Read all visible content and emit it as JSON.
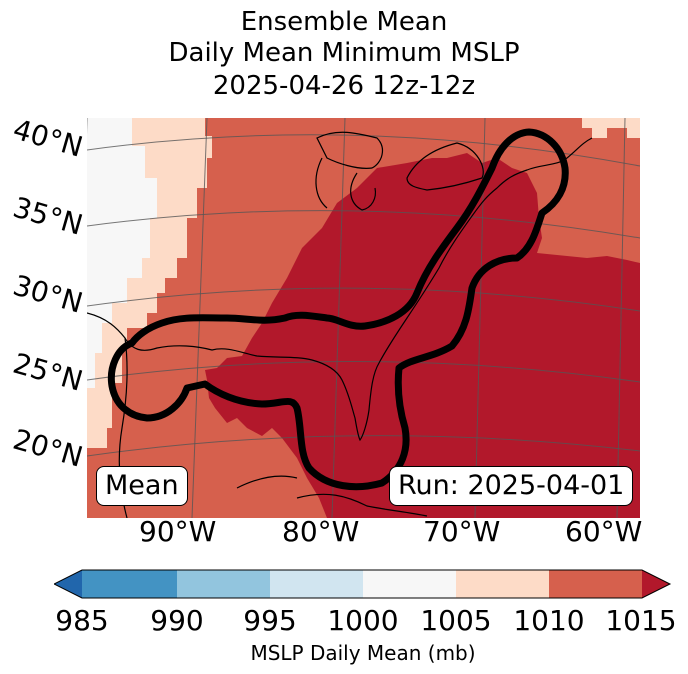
{
  "title": {
    "line1": "Ensemble Mean",
    "line2": "Daily Mean Minimum MSLP",
    "line3": "2025-04-26 12z-12z"
  },
  "map": {
    "lat_labels": [
      "40°N",
      "35°N",
      "30°N",
      "25°N",
      "20°N"
    ],
    "lon_labels": [
      "90°W",
      "80°W",
      "70°W",
      "60°W"
    ],
    "mean_box": "Mean",
    "run_box": "Run: 2025-04-01",
    "colors": {
      "c1000": "#f7f7f7",
      "c1005": "#fddbc7",
      "c1010": "#d6604d",
      "c1015": "#b2182b",
      "outline": "#000000",
      "coast": "#000000"
    }
  },
  "colorbar": {
    "ticks": [
      "985",
      "990",
      "995",
      "1000",
      "1005",
      "1010",
      "1015"
    ],
    "label": "MSLP Daily Mean (mb)",
    "bins": [
      {
        "from": 985,
        "to": 990,
        "color": "#4393c3"
      },
      {
        "from": 990,
        "to": 995,
        "color": "#92c5de"
      },
      {
        "from": 995,
        "to": 1000,
        "color": "#d1e5f0"
      },
      {
        "from": 1000,
        "to": 1005,
        "color": "#f7f7f7"
      },
      {
        "from": 1005,
        "to": 1010,
        "color": "#fddbc7"
      },
      {
        "from": 1010,
        "to": 1015,
        "color": "#d6604d"
      }
    ],
    "under_color": "#2166ac",
    "over_color": "#b2182b"
  }
}
